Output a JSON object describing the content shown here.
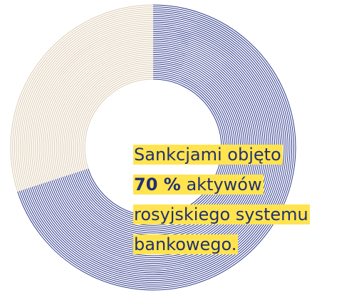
{
  "chart_data": {
    "type": "donut",
    "values": [
      70,
      30
    ],
    "colors": [
      "#2e3a8c",
      "#dccbb0"
    ],
    "annotation": {
      "line1": "Sankcjami objęto",
      "highlight": "70 %",
      "line2": "aktywów",
      "line3": "rosyjskiego systemu",
      "line4": "bankowego."
    },
    "highlight_color": "#ffe44f"
  }
}
